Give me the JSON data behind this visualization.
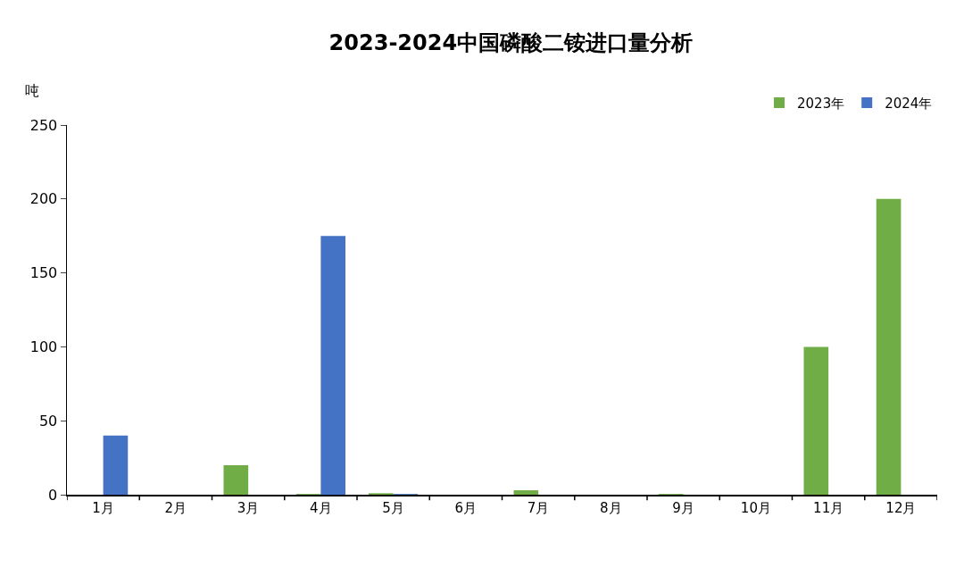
{
  "chart_data": {
    "type": "bar",
    "title": "2023-2024中国磷酸二铵进口量分析",
    "ylabel": "吨",
    "categories": [
      "1月",
      "2月",
      "3月",
      "4月",
      "5月",
      "6月",
      "7月",
      "8月",
      "9月",
      "10月",
      "11月",
      "12月"
    ],
    "series": [
      {
        "name": "2023年",
        "color": "#70ad47",
        "values": [
          0,
          0,
          20,
          0.5,
          1,
          0,
          3,
          0,
          0.5,
          0,
          100,
          200
        ]
      },
      {
        "name": "2024年",
        "color": "#4472c4",
        "values": [
          40,
          0,
          0,
          175,
          0.5,
          0,
          0,
          0,
          0,
          0,
          0,
          0
        ]
      }
    ],
    "ylim": [
      0,
      250
    ],
    "yticks": [
      0,
      50,
      100,
      150,
      200,
      250
    ],
    "grid": false,
    "legend": "top right"
  }
}
